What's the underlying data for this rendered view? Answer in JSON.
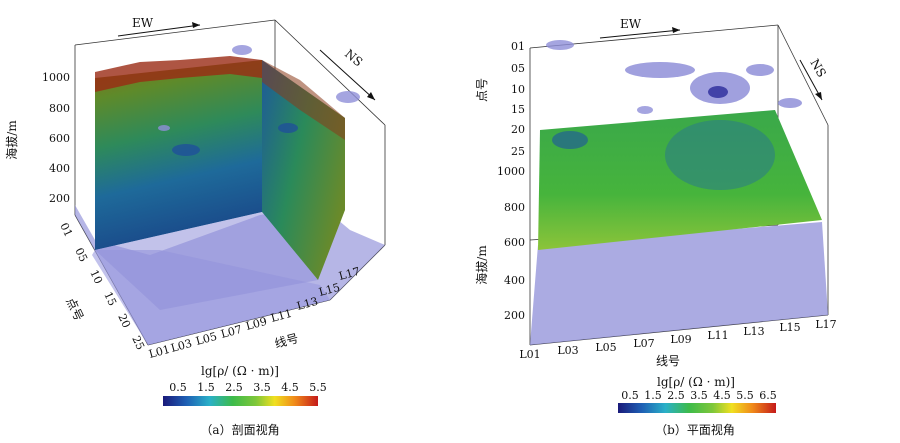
{
  "figure_a": {
    "direction_ew": "EW",
    "direction_ns": "NS",
    "z_axis_label": "海拔/m",
    "z_ticks": [
      "1000",
      "800",
      "600",
      "400",
      "200"
    ],
    "point_axis_label": "点号",
    "point_ticks": [
      "01",
      "05",
      "10",
      "15",
      "20",
      "25"
    ],
    "line_axis_label": "线号",
    "line_ticks": [
      "L01",
      "L03",
      "L05",
      "L07",
      "L09",
      "L11",
      "L13",
      "L15",
      "L17"
    ],
    "colorbar_title": "lg[ρ/ (Ω · m)]",
    "colorbar_ticks": [
      "0.5",
      "1.5",
      "2.5",
      "3.5",
      "4.5",
      "5.5"
    ],
    "caption": "（a）剖面视角"
  },
  "figure_b": {
    "direction_ew": "EW",
    "direction_ns": "NS",
    "point_axis_label": "点号",
    "point_ticks": [
      "01",
      "05",
      "10",
      "15",
      "20",
      "25"
    ],
    "z_axis_label": "海拔/m",
    "z_ticks": [
      "1000",
      "800",
      "600",
      "400",
      "200"
    ],
    "line_axis_label": "线号",
    "line_ticks": [
      "L01",
      "L03",
      "L05",
      "L07",
      "L09",
      "L11",
      "L13",
      "L15",
      "L17"
    ],
    "colorbar_title": "lg[ρ/ (Ω · m)]",
    "colorbar_ticks": [
      "0.5",
      "1.5",
      "2.5",
      "3.5",
      "4.5",
      "5.5",
      "6.5"
    ],
    "caption": "（b）平面视角"
  },
  "colors": {
    "colormap": [
      "#1a1a7a",
      "#1e5fb4",
      "#2ab0c8",
      "#3dbb4a",
      "#7fc73a",
      "#f0e020",
      "#f08a1a",
      "#c41a1a"
    ],
    "isosurface": "#8f8fd8"
  }
}
